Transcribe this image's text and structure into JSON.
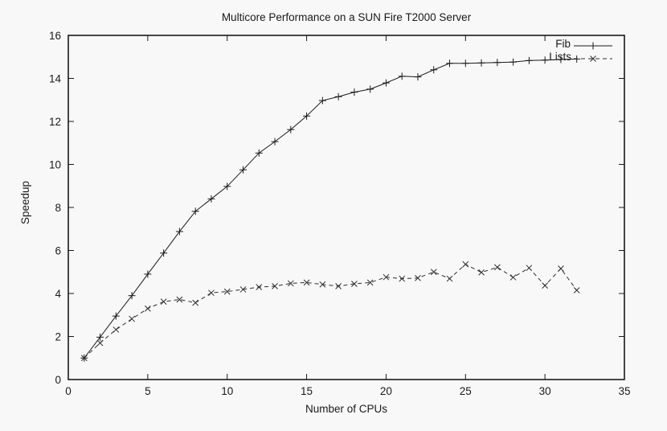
{
  "window": {
    "background": "#f8f8f8",
    "foreground": "#1a1a1a"
  },
  "chart_data": {
    "type": "line",
    "title": "Multicore Performance on a SUN Fire T2000 Server",
    "xlabel": "Number of CPUs",
    "ylabel": "Speedup",
    "xlim": [
      0,
      35
    ],
    "ylim": [
      0,
      16
    ],
    "xticks": [
      0,
      5,
      10,
      15,
      20,
      25,
      30,
      35
    ],
    "yticks": [
      0,
      2,
      4,
      6,
      8,
      10,
      12,
      14,
      16
    ],
    "grid": false,
    "legend_position": "top-right-inside",
    "x": [
      1,
      2,
      3,
      4,
      5,
      6,
      7,
      8,
      9,
      10,
      11,
      12,
      13,
      14,
      15,
      16,
      17,
      18,
      19,
      20,
      21,
      22,
      23,
      24,
      25,
      26,
      27,
      28,
      29,
      30,
      31,
      32
    ],
    "series": [
      {
        "name": "Fib",
        "marker": "plus",
        "line_style": "solid",
        "color": "#1a1a1a",
        "values": [
          1.0,
          1.97,
          2.95,
          3.9,
          4.9,
          5.88,
          6.88,
          7.82,
          8.4,
          8.98,
          9.75,
          10.53,
          11.06,
          11.62,
          12.25,
          12.97,
          13.15,
          13.36,
          13.5,
          13.79,
          14.1,
          14.07,
          14.4,
          14.7,
          14.7,
          14.72,
          14.74,
          14.76,
          14.83,
          14.85,
          14.88,
          14.9
        ]
      },
      {
        "name": "Lists",
        "marker": "cross",
        "line_style": "dashed",
        "color": "#2e2e2e",
        "values": [
          1.0,
          1.7,
          2.32,
          2.82,
          3.3,
          3.62,
          3.72,
          3.57,
          4.03,
          4.09,
          4.19,
          4.3,
          4.34,
          4.47,
          4.51,
          4.42,
          4.34,
          4.45,
          4.51,
          4.76,
          4.69,
          4.72,
          5.0,
          4.69,
          5.36,
          4.98,
          5.22,
          4.75,
          5.19,
          4.37,
          5.16,
          4.15
        ]
      }
    ]
  }
}
